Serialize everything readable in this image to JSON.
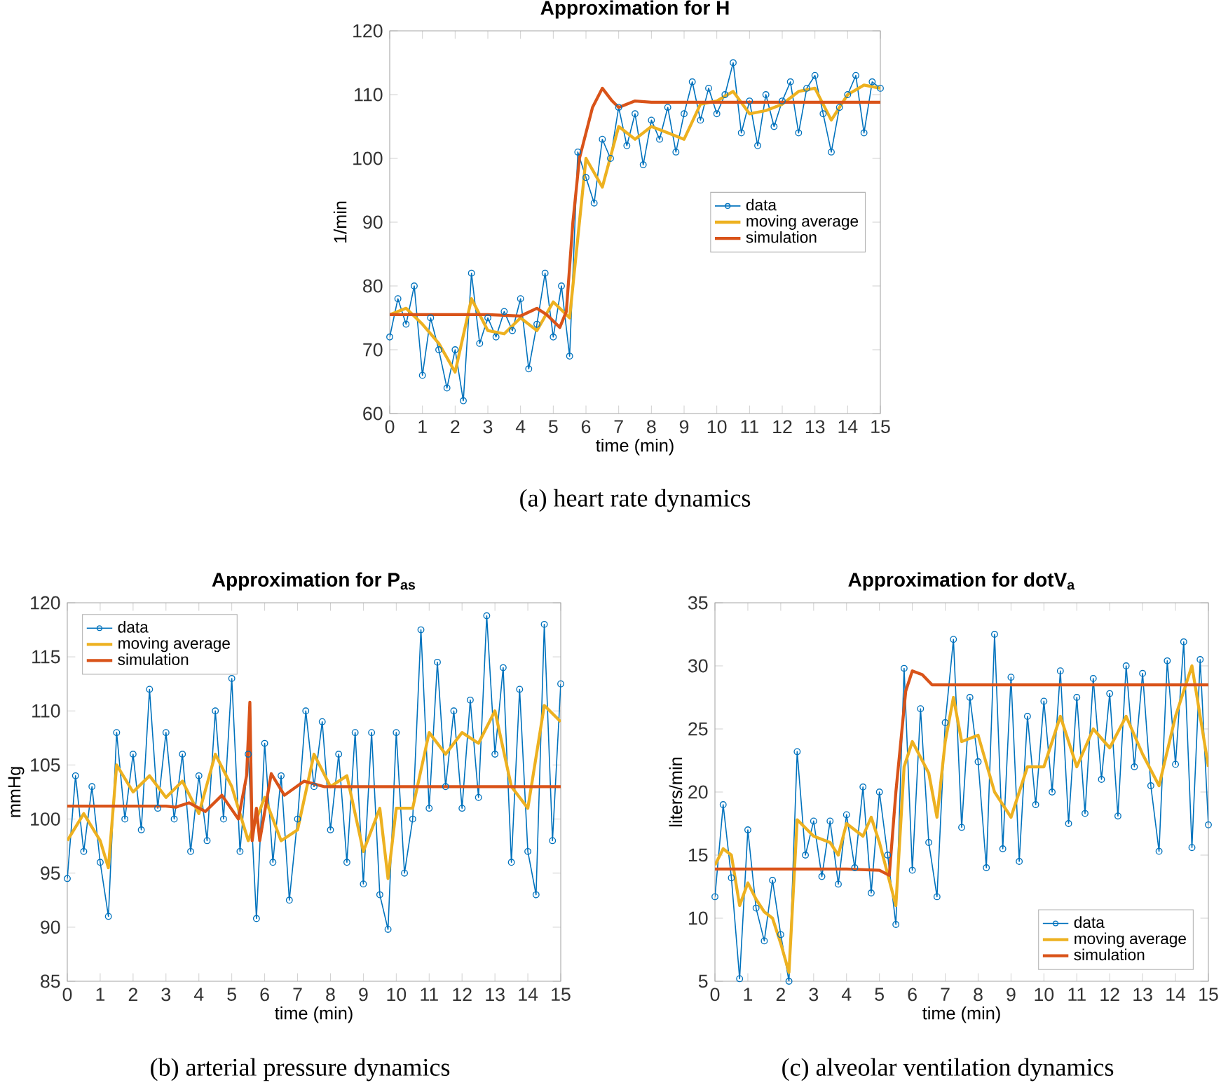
{
  "chart_data": [
    {
      "type": "line",
      "title": "Approximation for H",
      "xlabel": "time (min)",
      "ylabel": "1/min",
      "annotations": [
        "(a) heart rate dynamics"
      ],
      "legend": "right",
      "xlim": [
        0,
        15
      ],
      "ylim": [
        60,
        120
      ],
      "xticks": [
        0,
        1,
        2,
        3,
        4,
        5,
        6,
        7,
        8,
        9,
        10,
        11,
        12,
        13,
        14,
        15
      ],
      "yticks": [
        60,
        70,
        80,
        90,
        100,
        110,
        120
      ],
      "series": [
        {
          "name": "data",
          "color": "#0072bd",
          "marker": "circle",
          "x": [
            0,
            0.25,
            0.5,
            0.75,
            1,
            1.25,
            1.5,
            1.75,
            2,
            2.25,
            2.5,
            2.75,
            3,
            3.25,
            3.5,
            3.75,
            4,
            4.25,
            4.5,
            4.75,
            5,
            5.25,
            5.5,
            5.75,
            6,
            6.25,
            6.5,
            6.75,
            7,
            7.25,
            7.5,
            7.75,
            8,
            8.25,
            8.5,
            8.75,
            9,
            9.25,
            9.5,
            9.75,
            10,
            10.25,
            10.5,
            10.75,
            11,
            11.25,
            11.5,
            11.75,
            12,
            12.25,
            12.5,
            12.75,
            13,
            13.25,
            13.5,
            13.75,
            14,
            14.25,
            14.5,
            14.75,
            15
          ],
          "values": [
            72,
            78,
            74,
            80,
            66,
            75,
            70,
            64,
            70,
            62,
            82,
            71,
            75,
            72,
            76,
            73,
            78,
            67,
            74,
            82,
            72,
            80,
            69,
            101,
            97,
            93,
            103,
            100,
            108,
            102,
            107,
            99,
            106,
            103,
            108,
            101,
            107,
            112,
            106,
            111,
            107,
            110,
            115,
            104,
            109,
            102,
            110,
            105,
            109,
            112,
            104,
            111,
            113,
            107,
            101,
            108,
            110,
            113,
            104,
            112,
            111
          ]
        },
        {
          "name": "moving average",
          "color": "#edb120",
          "x": [
            0,
            0.5,
            1,
            1.5,
            2,
            2.5,
            3,
            3.5,
            4,
            4.5,
            5,
            5.5,
            6,
            6.5,
            7,
            7.5,
            8,
            8.5,
            9,
            9.5,
            10,
            10.5,
            11,
            11.5,
            12,
            12.5,
            13,
            13.5,
            14,
            14.5,
            15
          ],
          "values": [
            75.5,
            76.5,
            74,
            71,
            66.5,
            78,
            73,
            72.5,
            75,
            73,
            77.5,
            75,
            100,
            95.5,
            105,
            103,
            105,
            104,
            103,
            108.5,
            109,
            110.5,
            107,
            107.5,
            108.5,
            110.5,
            111,
            106,
            110,
            111.5,
            111
          ]
        },
        {
          "name": "simulation",
          "color": "#d95319",
          "x": [
            0,
            1,
            2,
            3,
            4,
            4.5,
            4.8,
            5.2,
            5.4,
            5.6,
            5.8,
            6,
            6.2,
            6.5,
            6.8,
            7,
            7.5,
            8,
            9,
            15
          ],
          "values": [
            75.5,
            75.5,
            75.5,
            75.5,
            75.3,
            76.5,
            75.5,
            73.5,
            76,
            90,
            100,
            104,
            108,
            111,
            109,
            108,
            109,
            108.8,
            108.8,
            108.8
          ]
        }
      ]
    },
    {
      "type": "line",
      "title": "Approximation for P$_{as}$",
      "xlabel": "time (min)",
      "ylabel": "mmHg",
      "annotations": [
        "(b) arterial pressure dynamics"
      ],
      "legend": "top left",
      "xlim": [
        0,
        15
      ],
      "ylim": [
        85,
        120
      ],
      "xticks": [
        0,
        1,
        2,
        3,
        4,
        5,
        6,
        7,
        8,
        9,
        10,
        11,
        12,
        13,
        14,
        15
      ],
      "yticks": [
        85,
        90,
        95,
        100,
        105,
        110,
        115,
        120
      ],
      "series": [
        {
          "name": "data",
          "color": "#0072bd",
          "marker": "circle",
          "x": [
            0,
            0.25,
            0.5,
            0.75,
            1,
            1.25,
            1.5,
            1.75,
            2,
            2.25,
            2.5,
            2.75,
            3,
            3.25,
            3.5,
            3.75,
            4,
            4.25,
            4.5,
            4.75,
            5,
            5.25,
            5.5,
            5.75,
            6,
            6.25,
            6.5,
            6.75,
            7,
            7.25,
            7.5,
            7.75,
            8,
            8.25,
            8.5,
            8.75,
            9,
            9.25,
            9.5,
            9.75,
            10,
            10.25,
            10.5,
            10.75,
            11,
            11.25,
            11.5,
            11.75,
            12,
            12.25,
            12.5,
            12.75,
            13,
            13.25,
            13.5,
            13.75,
            14,
            14.25,
            14.5,
            14.75,
            15
          ],
          "values": [
            94.5,
            104,
            97,
            103,
            96,
            91,
            108,
            100,
            106,
            99,
            112,
            101,
            108,
            100,
            106,
            97,
            104,
            98,
            110,
            100,
            113,
            97,
            106,
            90.8,
            107,
            96,
            104,
            92.5,
            100,
            110,
            103,
            109,
            99,
            106,
            96,
            108,
            94,
            108,
            93,
            89.8,
            108,
            95,
            100,
            117.5,
            101,
            114.5,
            103,
            110,
            101,
            111,
            102,
            118.8,
            106,
            114,
            96,
            112,
            97,
            93,
            118,
            98,
            112.5
          ]
        },
        {
          "name": "moving average",
          "color": "#edb120",
          "x": [
            0,
            0.5,
            1,
            1.25,
            1.5,
            2,
            2.5,
            3,
            3.5,
            4,
            4.5,
            5,
            5.5,
            6,
            6.5,
            7,
            7.5,
            8,
            8.5,
            9,
            9.5,
            9.75,
            10,
            10.5,
            11,
            11.5,
            12,
            12.5,
            13,
            13.5,
            14,
            14.5,
            15
          ],
          "values": [
            98,
            100.5,
            98,
            95.5,
            105,
            102.5,
            104,
            102,
            103.5,
            100.5,
            106,
            103,
            98,
            102,
            98,
            99,
            106,
            103,
            104,
            97,
            101,
            94.5,
            101,
            101,
            108,
            106,
            108,
            107,
            110,
            103,
            101,
            110.5,
            109
          ]
        },
        {
          "name": "simulation",
          "color": "#d95319",
          "x": [
            0,
            3,
            3.3,
            3.7,
            4.2,
            4.7,
            5.2,
            5.45,
            5.55,
            5.62,
            5.75,
            5.85,
            6.2,
            6.6,
            7.2,
            7.8,
            15
          ],
          "values": [
            101.2,
            101.2,
            101.1,
            101.5,
            100.7,
            102.2,
            100,
            104,
            110.8,
            98,
            101,
            98,
            104.2,
            102.2,
            103.5,
            103,
            103
          ]
        }
      ]
    },
    {
      "type": "line",
      "title": "Approximation for dotV$_{a}$",
      "xlabel": "time (min)",
      "ylabel": "liters/min",
      "annotations": [
        "(c) alveolar ventilation dynamics"
      ],
      "legend": "bottom right",
      "xlim": [
        0,
        15
      ],
      "ylim": [
        5,
        35
      ],
      "xticks": [
        0,
        1,
        2,
        3,
        4,
        5,
        6,
        7,
        8,
        9,
        10,
        11,
        12,
        13,
        14,
        15
      ],
      "yticks": [
        5,
        10,
        15,
        20,
        25,
        30,
        35
      ],
      "series": [
        {
          "name": "data",
          "color": "#0072bd",
          "marker": "circle",
          "x": [
            0,
            0.25,
            0.5,
            0.75,
            1,
            1.25,
            1.5,
            1.75,
            2,
            2.25,
            2.5,
            2.75,
            3,
            3.25,
            3.5,
            3.75,
            4,
            4.25,
            4.5,
            4.75,
            5,
            5.25,
            5.5,
            5.75,
            6,
            6.25,
            6.5,
            6.75,
            7,
            7.25,
            7.5,
            7.75,
            8,
            8.25,
            8.5,
            8.75,
            9,
            9.25,
            9.5,
            9.75,
            10,
            10.25,
            10.5,
            10.75,
            11,
            11.25,
            11.5,
            11.75,
            12,
            12.25,
            12.5,
            12.75,
            13,
            13.25,
            13.5,
            13.75,
            14,
            14.25,
            14.5,
            14.75,
            15
          ],
          "values": [
            11.7,
            19,
            13.2,
            5.2,
            17,
            10.8,
            8.2,
            13,
            8.7,
            5,
            23.2,
            15,
            17.7,
            13.3,
            17.7,
            12.7,
            18.2,
            14,
            20.4,
            12,
            20,
            15,
            9.5,
            29.8,
            13.8,
            26.6,
            16,
            11.7,
            25.5,
            32.1,
            17.2,
            27.5,
            22.4,
            14,
            32.5,
            15.5,
            29.1,
            14.5,
            26,
            19,
            27.2,
            20,
            29.6,
            17.5,
            27.5,
            18.3,
            29,
            21,
            27.8,
            18.1,
            30,
            22,
            29.4,
            20.5,
            15.3,
            30.4,
            22.2,
            31.9,
            15.6,
            30.5,
            17.4
          ]
        },
        {
          "name": "moving average",
          "color": "#edb120",
          "x": [
            0,
            0.25,
            0.5,
            0.75,
            1,
            1.25,
            1.5,
            1.75,
            2,
            2.25,
            2.5,
            3,
            3.5,
            3.75,
            4,
            4.5,
            4.75,
            5,
            5.5,
            5.75,
            6,
            6.5,
            6.75,
            7,
            7.25,
            7.5,
            8,
            8.5,
            9,
            9.5,
            10,
            10.5,
            11,
            11.5,
            12,
            12.5,
            13,
            13.5,
            14,
            14.5,
            15
          ],
          "values": [
            14.2,
            15.5,
            15,
            11,
            12.8,
            11.5,
            10.5,
            10,
            8,
            5.7,
            17.8,
            16.5,
            16,
            15,
            17.5,
            16.5,
            18,
            16,
            11,
            22,
            24,
            21.5,
            18,
            24,
            27.5,
            24,
            24.5,
            20,
            18,
            22,
            22,
            26,
            22,
            25,
            23.5,
            26,
            23,
            20.5,
            26,
            30,
            22
          ]
        },
        {
          "name": "simulation",
          "color": "#d95319",
          "x": [
            0,
            4,
            5,
            5.3,
            5.5,
            5.8,
            6,
            6.3,
            6.6,
            7,
            8,
            15
          ],
          "values": [
            13.9,
            13.9,
            13.8,
            13.4,
            20,
            28,
            29.6,
            29.3,
            28.5,
            28.5,
            28.5,
            28.5
          ]
        }
      ]
    }
  ]
}
